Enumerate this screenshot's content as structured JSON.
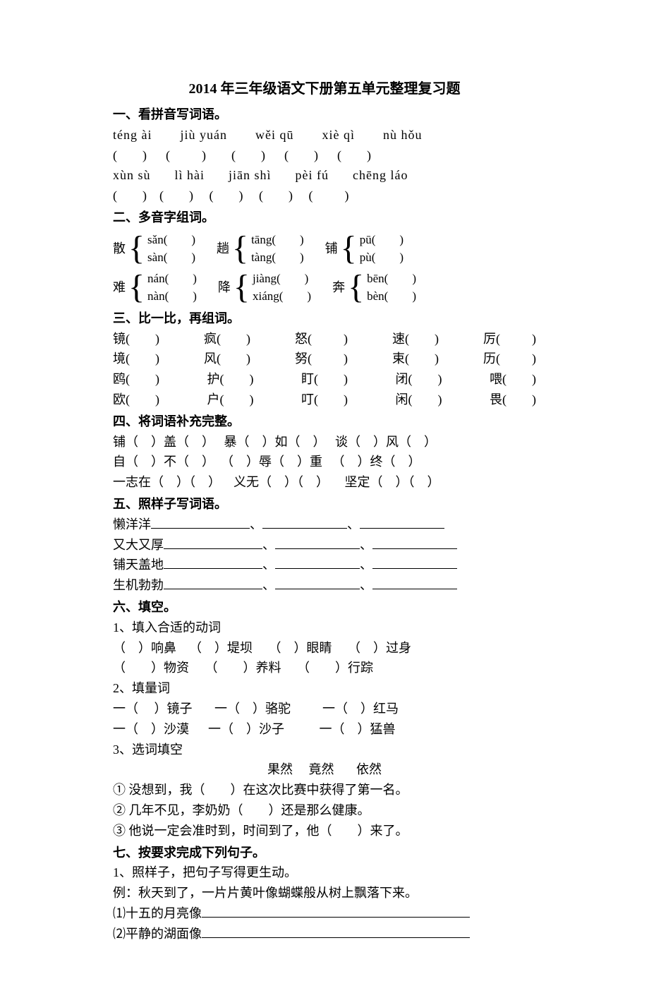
{
  "title": "2014 年三年级语文下册第五单元整理复习题",
  "s1": {
    "head": "一、看拼音写词语。",
    "r1": [
      "téng  ài",
      "jiù  yuán",
      "wěi  qū",
      "xiè  qì",
      "nù  hǒu"
    ],
    "b1": [
      "(        )",
      "  (          )",
      "    (        )",
      "  (        )",
      "  (        )"
    ],
    "r2": [
      "xùn  sù",
      "lì  hài",
      "jiān  shì",
      "pèi  fú",
      "chēng  láo"
    ],
    "b2": [
      "(        )",
      "(        )",
      " (        )",
      " (        )",
      " (          )"
    ]
  },
  "s2": {
    "head": "二、多音字组词。",
    "rows": [
      [
        {
          "char": "散",
          "a": "sǎn(        )",
          "b": "sàn(        )"
        },
        {
          "char": "趟",
          "a": "tāng(        )",
          "b": "tàng(        )"
        },
        {
          "char": "铺",
          "a": "pū(        )",
          "b": "pù(        )"
        }
      ],
      [
        {
          "char": "难",
          "a": "nán(        )",
          "b": "nàn(        )"
        },
        {
          "char": "降",
          "a": "jiàng(        )",
          "b": "xiáng(        )"
        },
        {
          "char": "奔",
          "a": "bēn(        )",
          "b": "bèn(        )"
        }
      ]
    ]
  },
  "s3": {
    "head": "三、比一比，再组词。",
    "rows": [
      [
        "镜(        )",
        "疯(        )",
        "怒(          )",
        "速(        )",
        "厉(          )"
      ],
      [
        "境(        )",
        "风(        )",
        "努(          )",
        "束(        )",
        "历(          )"
      ],
      [
        "鸥(        )",
        "护(        )",
        "盯(        )",
        "闭(        )",
        "喂(        )"
      ],
      [
        "欧(        )",
        "户(        )",
        "叮(        )",
        "闲(        )",
        "畏(        )"
      ]
    ]
  },
  "s4": {
    "head": "四、将词语补充完整。",
    "lines": [
      "铺（    ）盖（    ）   暴（    ）如（    ）   谈（    ）风（    ）",
      "自（    ）不（    ）  （    ）辱（    ）重   （    ）终（    ）",
      "一志在（    ）（    ）    义无（    ）（    ）     坚定（    ）（    ）"
    ]
  },
  "s5": {
    "head": "五、照样子写词语。",
    "items": [
      "懒洋洋",
      "又大又厚",
      "铺天盖地",
      "生机勃勃"
    ]
  },
  "s6": {
    "head": "六、填空。",
    "p1": {
      "title": "1、填入合适的动词",
      "l1": "（    ）响鼻    （    ）堤坝     （    ）眼睛     （    ）过身",
      "l2": "（        ）物资     （        ）养料     （        ）行踪"
    },
    "p2": {
      "title": "2、填量词",
      "l1": "一（     ）镜子       一（    ）骆驼          一（    ）红马",
      "l2": "一（    ）沙漠      一（    ）沙子           一（    ）猛兽"
    },
    "p3": {
      "title": "3、选词填空",
      "words": "果然     竟然       依然",
      "a": "① 没想到，我（        ）在这次比赛中获得了第一名。",
      "b": "② 几年不见，李奶奶（        ）还是那么健康。",
      "c": "③ 他说一定会准时到，时间到了，他（        ）来了。"
    }
  },
  "s7": {
    "head": "七、按要求完成下列句子。",
    "p1": "1、照样子，把句子写得更生动。",
    "ex": "例：秋天到了，一片片黄叶像蝴蝶般从树上飘落下来。",
    "a": "⑴十五的月亮像",
    "b": "⑵平静的湖面像"
  }
}
